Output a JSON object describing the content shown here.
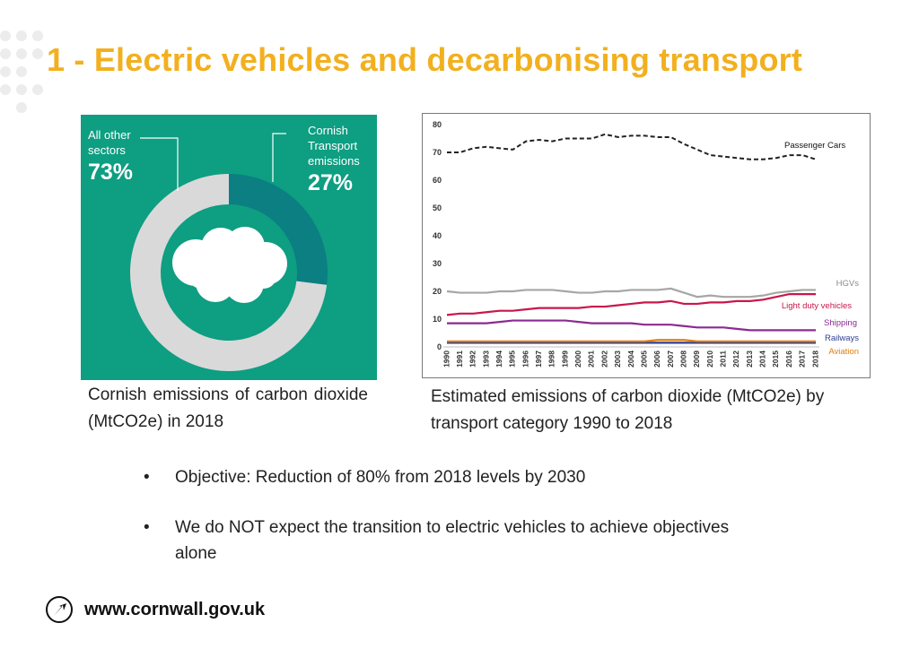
{
  "slide": {
    "title": "1 - Electric vehicles and decarbonising transport"
  },
  "donut": {
    "left_label": "All other\nsectors",
    "left_value": "73%",
    "right_label": "Cornish\nTransport\nemissions",
    "right_value": "27%",
    "caption": "Cornish emissions of carbon dioxide (MtCO2e) in 2018",
    "background_color": "#0e9e82",
    "highlight_color": "#0b7f82",
    "rest_color": "#d9d9d9",
    "icon": "cloud-icon"
  },
  "line_chart": {
    "caption": "Estimated emissions of carbon dioxide (MtCO2e) by transport category 1990 to 2018"
  },
  "chart_data": [
    {
      "type": "pie",
      "labels": [
        "All other sectors",
        "Cornish Transport emissions"
      ],
      "values": [
        73,
        27
      ]
    },
    {
      "type": "line",
      "x": [
        1990,
        1991,
        1992,
        1993,
        1994,
        1995,
        1996,
        1997,
        1998,
        1999,
        2000,
        2001,
        2002,
        2003,
        2004,
        2005,
        2006,
        2007,
        2008,
        2009,
        2010,
        2011,
        2012,
        2013,
        2014,
        2015,
        2016,
        2017,
        2018
      ],
      "ylim": [
        0,
        80
      ],
      "yticks": [
        0,
        10,
        20,
        30,
        40,
        50,
        60,
        70,
        80
      ],
      "grid": false,
      "series": [
        {
          "name": "Passenger Cars",
          "color": "#222222",
          "dashed": true,
          "values": [
            70,
            70,
            71.5,
            72,
            71.5,
            71,
            74,
            74.5,
            74,
            75,
            75,
            75,
            76.5,
            75.5,
            76,
            76,
            75.5,
            75.5,
            73,
            71,
            69,
            68.5,
            68,
            67.5,
            67.5,
            68,
            69,
            69,
            67.5
          ]
        },
        {
          "name": "HGVs",
          "color": "#a6a6a6",
          "values": [
            20,
            19.5,
            19.5,
            19.5,
            20,
            20,
            20.5,
            20.5,
            20.5,
            20,
            19.5,
            19.5,
            20,
            20,
            20.5,
            20.5,
            20.5,
            21,
            19.5,
            18,
            18.5,
            18,
            18,
            18,
            18.5,
            19.5,
            20,
            20.5,
            20.5
          ]
        },
        {
          "name": "Light duty vehicles",
          "color": "#c8174c",
          "values": [
            11.5,
            12,
            12,
            12.5,
            13,
            13,
            13.5,
            14,
            14,
            14,
            14,
            14.5,
            14.5,
            15,
            15.5,
            16,
            16,
            16.5,
            15.5,
            15.5,
            16,
            16,
            16.5,
            16.5,
            17,
            18,
            19,
            19,
            19
          ]
        },
        {
          "name": "Shipping",
          "color": "#8b2a92",
          "values": [
            8.5,
            8.5,
            8.5,
            8.5,
            9,
            9.5,
            9.5,
            9.5,
            9.5,
            9.5,
            9,
            8.5,
            8.5,
            8.5,
            8.5,
            8,
            8,
            8,
            7.5,
            7,
            7,
            7,
            6.5,
            6,
            6,
            6,
            6,
            6,
            6
          ]
        },
        {
          "name": "Railways",
          "color": "#2f3f8f",
          "values": [
            1.5,
            1.5,
            1.5,
            1.5,
            1.5,
            1.5,
            1.5,
            1.5,
            1.5,
            1.5,
            1.5,
            1.5,
            1.5,
            1.5,
            1.5,
            1.5,
            1.5,
            1.5,
            1.5,
            1.5,
            1.5,
            1.5,
            1.5,
            1.5,
            1.5,
            1.5,
            1.5,
            1.5,
            1.5
          ]
        },
        {
          "name": "Aviation",
          "color": "#e07d10",
          "values": [
            2,
            2,
            2,
            2,
            2,
            2,
            2,
            2,
            2,
            2,
            2,
            2,
            2,
            2,
            2,
            2,
            2.5,
            2.5,
            2.5,
            2,
            2,
            2,
            2,
            2,
            2,
            2,
            2,
            2,
            2
          ]
        }
      ]
    }
  ],
  "objectives": [
    {
      "bullet": "•",
      "text": "Objective: Reduction of 80% from 2018 levels by 2030"
    },
    {
      "bullet": "•",
      "text": "We do NOT expect the transition to electric vehicles to achieve objectives alone"
    }
  ],
  "footer": {
    "url": "www.cornwall.gov.uk",
    "icon": "cornwall-logo-icon"
  },
  "colors": {
    "title": "#f2b01f",
    "decor_dots": "#ececec"
  }
}
